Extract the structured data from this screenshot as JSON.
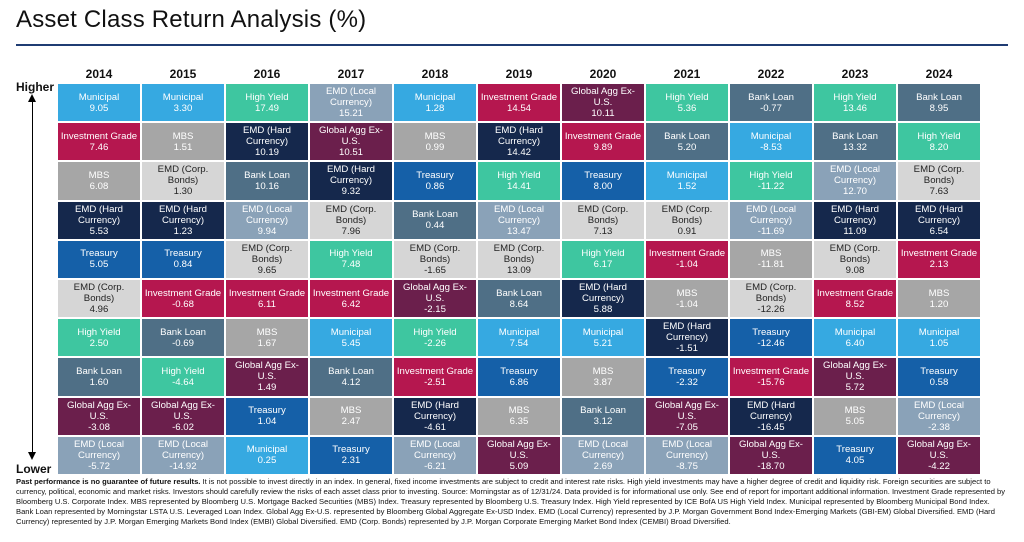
{
  "title": "Asset Class Return Analysis (%)",
  "axis": {
    "higher": "Higher",
    "lower": "Lower"
  },
  "colors": {
    "Municipal": "#36a9e1",
    "Investment Grade": "#b5174f",
    "MBS": "#a6a6a6",
    "EMD (Hard Currency)": "#15284c",
    "Treasury": "#1560a8",
    "EMD (Corp. Bonds)": "#d6d6d6",
    "High Yield": "#3ec6a0",
    "Bank Loan": "#4f6f86",
    "Global Agg Ex-U.S.": "#6b1f4c",
    "EMD (Local Currency)": "#8aa2b8"
  },
  "chart_data": {
    "type": "table",
    "years": [
      "2014",
      "2015",
      "2016",
      "2017",
      "2018",
      "2019",
      "2020",
      "2021",
      "2022",
      "2023",
      "2024"
    ],
    "columns": [
      {
        "year": "2014",
        "cells": [
          {
            "name": "Municipal",
            "value": "9.05"
          },
          {
            "name": "Investment Grade",
            "value": "7.46"
          },
          {
            "name": "MBS",
            "value": "6.08"
          },
          {
            "name": "EMD (Hard Currency)",
            "value": "5.53"
          },
          {
            "name": "Treasury",
            "value": "5.05"
          },
          {
            "name": "EMD (Corp. Bonds)",
            "value": "4.96"
          },
          {
            "name": "High Yield",
            "value": "2.50"
          },
          {
            "name": "Bank Loan",
            "value": "1.60"
          },
          {
            "name": "Global Agg Ex-U.S.",
            "value": "-3.08"
          },
          {
            "name": "EMD (Local Currency)",
            "value": "-5.72"
          }
        ]
      },
      {
        "year": "2015",
        "cells": [
          {
            "name": "Municipal",
            "value": "3.30"
          },
          {
            "name": "MBS",
            "value": "1.51"
          },
          {
            "name": "EMD (Corp. Bonds)",
            "value": "1.30"
          },
          {
            "name": "EMD (Hard Currency)",
            "value": "1.23"
          },
          {
            "name": "Treasury",
            "value": "0.84"
          },
          {
            "name": "Investment Grade",
            "value": "-0.68"
          },
          {
            "name": "Bank Loan",
            "value": "-0.69"
          },
          {
            "name": "High Yield",
            "value": "-4.64"
          },
          {
            "name": "Global Agg Ex-U.S.",
            "value": "-6.02"
          },
          {
            "name": "EMD (Local Currency)",
            "value": "-14.92"
          }
        ]
      },
      {
        "year": "2016",
        "cells": [
          {
            "name": "High Yield",
            "value": "17.49"
          },
          {
            "name": "EMD (Hard Currency)",
            "value": "10.19"
          },
          {
            "name": "Bank Loan",
            "value": "10.16"
          },
          {
            "name": "EMD (Local Currency)",
            "value": "9.94"
          },
          {
            "name": "EMD (Corp. Bonds)",
            "value": "9.65"
          },
          {
            "name": "Investment Grade",
            "value": "6.11"
          },
          {
            "name": "MBS",
            "value": "1.67"
          },
          {
            "name": "Global Agg Ex-U.S.",
            "value": "1.49"
          },
          {
            "name": "Treasury",
            "value": "1.04"
          },
          {
            "name": "Municipal",
            "value": "0.25"
          }
        ]
      },
      {
        "year": "2017",
        "cells": [
          {
            "name": "EMD (Local Currency)",
            "value": "15.21"
          },
          {
            "name": "Global Agg Ex-U.S.",
            "value": "10.51"
          },
          {
            "name": "EMD (Hard Currency)",
            "value": "9.32"
          },
          {
            "name": "EMD (Corp. Bonds)",
            "value": "7.96"
          },
          {
            "name": "High Yield",
            "value": "7.48"
          },
          {
            "name": "Investment Grade",
            "value": "6.42"
          },
          {
            "name": "Municipal",
            "value": "5.45"
          },
          {
            "name": "Bank Loan",
            "value": "4.12"
          },
          {
            "name": "MBS",
            "value": "2.47"
          },
          {
            "name": "Treasury",
            "value": "2.31"
          }
        ]
      },
      {
        "year": "2018",
        "cells": [
          {
            "name": "Municipal",
            "value": "1.28"
          },
          {
            "name": "MBS",
            "value": "0.99"
          },
          {
            "name": "Treasury",
            "value": "0.86"
          },
          {
            "name": "Bank Loan",
            "value": "0.44"
          },
          {
            "name": "EMD (Corp. Bonds)",
            "value": "-1.65"
          },
          {
            "name": "Global Agg Ex-U.S.",
            "value": "-2.15"
          },
          {
            "name": "High Yield",
            "value": "-2.26"
          },
          {
            "name": "Investment Grade",
            "value": "-2.51"
          },
          {
            "name": "EMD (Hard Currency)",
            "value": "-4.61"
          },
          {
            "name": "EMD (Local Currency)",
            "value": "-6.21"
          }
        ]
      },
      {
        "year": "2019",
        "cells": [
          {
            "name": "Investment Grade",
            "value": "14.54"
          },
          {
            "name": "EMD (Hard Currency)",
            "value": "14.42"
          },
          {
            "name": "High Yield",
            "value": "14.41"
          },
          {
            "name": "EMD (Local Currency)",
            "value": "13.47"
          },
          {
            "name": "EMD (Corp. Bonds)",
            "value": "13.09"
          },
          {
            "name": "Bank Loan",
            "value": "8.64"
          },
          {
            "name": "Municipal",
            "value": "7.54"
          },
          {
            "name": "Treasury",
            "value": "6.86"
          },
          {
            "name": "MBS",
            "value": "6.35"
          },
          {
            "name": "Global Agg Ex-U.S.",
            "value": "5.09"
          }
        ]
      },
      {
        "year": "2020",
        "cells": [
          {
            "name": "Global Agg Ex-U.S.",
            "value": "10.11"
          },
          {
            "name": "Investment Grade",
            "value": "9.89"
          },
          {
            "name": "Treasury",
            "value": "8.00"
          },
          {
            "name": "EMD (Corp. Bonds)",
            "value": "7.13"
          },
          {
            "name": "High Yield",
            "value": "6.17"
          },
          {
            "name": "EMD (Hard Currency)",
            "value": "5.88"
          },
          {
            "name": "Municipal",
            "value": "5.21"
          },
          {
            "name": "MBS",
            "value": "3.87"
          },
          {
            "name": "Bank Loan",
            "value": "3.12"
          },
          {
            "name": "EMD (Local Currency)",
            "value": "2.69"
          }
        ]
      },
      {
        "year": "2021",
        "cells": [
          {
            "name": "High Yield",
            "value": "5.36"
          },
          {
            "name": "Bank Loan",
            "value": "5.20"
          },
          {
            "name": "Municipal",
            "value": "1.52"
          },
          {
            "name": "EMD (Corp. Bonds)",
            "value": "0.91"
          },
          {
            "name": "Investment Grade",
            "value": "-1.04"
          },
          {
            "name": "MBS",
            "value": "-1.04"
          },
          {
            "name": "EMD (Hard Currency)",
            "value": "-1.51"
          },
          {
            "name": "Treasury",
            "value": "-2.32"
          },
          {
            "name": "Global Agg Ex-U.S.",
            "value": "-7.05"
          },
          {
            "name": "EMD (Local Currency)",
            "value": "-8.75"
          }
        ]
      },
      {
        "year": "2022",
        "cells": [
          {
            "name": "Bank Loan",
            "value": "-0.77"
          },
          {
            "name": "Municipal",
            "value": "-8.53"
          },
          {
            "name": "High Yield",
            "value": "-11.22"
          },
          {
            "name": "EMD (Local Currency)",
            "value": "-11.69"
          },
          {
            "name": "MBS",
            "value": "-11.81"
          },
          {
            "name": "EMD (Corp. Bonds)",
            "value": "-12.26"
          },
          {
            "name": "Treasury",
            "value": "-12.46"
          },
          {
            "name": "Investment Grade",
            "value": "-15.76"
          },
          {
            "name": "EMD (Hard Currency)",
            "value": "-16.45"
          },
          {
            "name": "Global Agg Ex-U.S.",
            "value": "-18.70"
          }
        ]
      },
      {
        "year": "2023",
        "cells": [
          {
            "name": "High Yield",
            "value": "13.46"
          },
          {
            "name": "Bank Loan",
            "value": "13.32"
          },
          {
            "name": "EMD (Local Currency)",
            "value": "12.70"
          },
          {
            "name": "EMD (Hard Currency)",
            "value": "11.09"
          },
          {
            "name": "EMD (Corp. Bonds)",
            "value": "9.08"
          },
          {
            "name": "Investment Grade",
            "value": "8.52"
          },
          {
            "name": "Municipal",
            "value": "6.40"
          },
          {
            "name": "Global Agg Ex-U.S.",
            "value": "5.72"
          },
          {
            "name": "MBS",
            "value": "5.05"
          },
          {
            "name": "Treasury",
            "value": "4.05"
          }
        ]
      },
      {
        "year": "2024",
        "cells": [
          {
            "name": "Bank Loan",
            "value": "8.95"
          },
          {
            "name": "High Yield",
            "value": "8.20"
          },
          {
            "name": "EMD (Corp. Bonds)",
            "value": "7.63"
          },
          {
            "name": "EMD (Hard Currency)",
            "value": "6.54"
          },
          {
            "name": "Investment Grade",
            "value": "2.13"
          },
          {
            "name": "MBS",
            "value": "1.20"
          },
          {
            "name": "Municipal",
            "value": "1.05"
          },
          {
            "name": "Treasury",
            "value": "0.58"
          },
          {
            "name": "EMD (Local Currency)",
            "value": "-2.38"
          },
          {
            "name": "Global Agg Ex-U.S.",
            "value": "-4.22"
          }
        ]
      }
    ]
  },
  "footnote": {
    "bold": "Past performance is no guarantee of future results.",
    "text": " It is not possible to invest directly in an index. In general, fixed income investments are subject to credit and interest rate risks. High yield investments may have a higher degree of credit and liquidity risk. Foreign securities are subject to currency, political, economic and market risks. Investors should carefully review the risks of each asset class prior to investing. Source: Morningstar as of 12/31/24. Data provided is for informational use only. See end of report for important additional information. Investment Grade represented by Bloomberg U.S. Corporate Index. MBS represented by Bloomberg U.S. Mortgage Backed Securities (MBS) Index. Treasury represented by Bloomberg U.S. Treasury Index. High Yield represented by ICE BofA US High Yield Index. Municipal represented by Bloomberg Municipal Bond Index. Bank Loan represented by Morningstar LSTA U.S. Leveraged Loan Index. Global Agg Ex-U.S. represented by Bloomberg Global Aggregate Ex-USD Index. EMD (Local Currency) represented by J.P. Morgan Government Bond Index-Emerging Markets (GBI-EM) Global Diversified. EMD (Hard Currency) represented by J.P. Morgan Emerging Markets Bond Index (EMBI) Global Diversified. EMD (Corp. Bonds) represented by J.P. Morgan Corporate Emerging Market Bond Index (CEMBI) Broad Diversified."
  }
}
